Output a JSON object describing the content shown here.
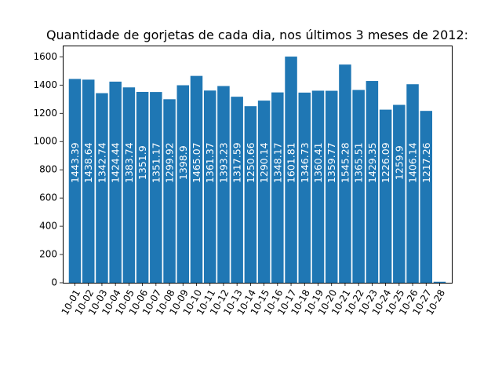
{
  "chart_data": {
    "type": "bar",
    "title": "Quantidade de gorjetas de cada dia, nos últimos 3 meses de 2012:",
    "xlabel": "",
    "ylabel": "",
    "categories": [
      "10-01",
      "10-02",
      "10-03",
      "10-04",
      "10-05",
      "10-06",
      "10-07",
      "10-08",
      "10-09",
      "10-10",
      "10-11",
      "10-12",
      "10-13",
      "10-14",
      "10-15",
      "10-16",
      "10-17",
      "10-18",
      "10-19",
      "10-20",
      "10-21",
      "10-22",
      "10-23",
      "10-24",
      "10-25",
      "10-26",
      "10-27",
      "10-28"
    ],
    "values": [
      1443.39,
      1438.64,
      1342.74,
      1424.44,
      1383.74,
      1351.9,
      1351.17,
      1299.92,
      1398.9,
      1465.07,
      1361.37,
      1393.23,
      1317.59,
      1250.66,
      1290.14,
      1348.17,
      1601.81,
      1346.73,
      1360.41,
      1359.77,
      1545.28,
      1365.51,
      1429.35,
      1226.09,
      1259.9,
      1406.14,
      1217.26,
      7.0
    ],
    "value_labels": [
      "1443.39",
      "1438.64",
      "1342.74",
      "1424.44",
      "1383.74",
      "1351.9",
      "1351.17",
      "1299.92",
      "1398.9",
      "1465.07",
      "1361.37",
      "1393.23",
      "1317.59",
      "1250.66",
      "1290.14",
      "1348.17",
      "1601.81",
      "1346.73",
      "1360.41",
      "1359.77",
      "1545.28",
      "1365.51",
      "1429.35",
      "1226.09",
      "1259.9",
      "1406.14",
      "1217.26",
      ""
    ],
    "y_ticks": [
      "0",
      "200",
      "400",
      "600",
      "800",
      "1000",
      "1200",
      "1400",
      "1600"
    ],
    "ylim": [
      0,
      1680
    ],
    "bar_color": "#1f77b4",
    "label_color": "#ffffff",
    "grid": false,
    "legend": "none"
  }
}
